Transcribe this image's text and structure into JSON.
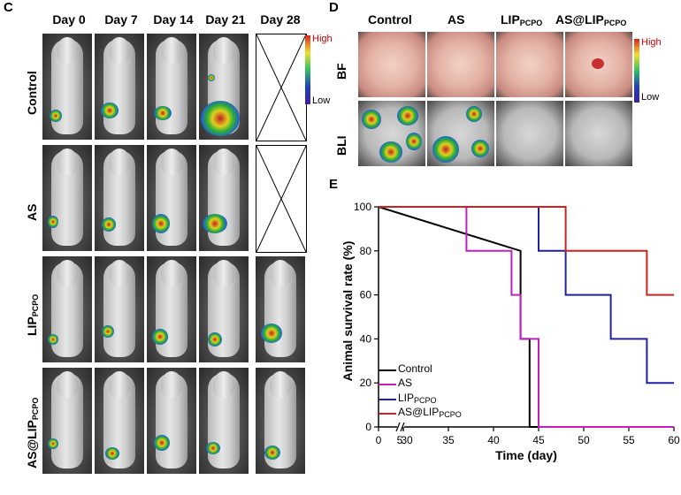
{
  "panel_c": {
    "letter": "C",
    "days": [
      "Day 0",
      "Day 7",
      "Day 14",
      "Day 21",
      "Day 28"
    ],
    "groups": [
      {
        "label": "Control",
        "sub": ""
      },
      {
        "label": "AS",
        "sub": ""
      },
      {
        "label": "LIP",
        "sub": "PCPO"
      },
      {
        "label": "AS@LIP",
        "sub": "PCPO"
      }
    ],
    "colorbar": {
      "high": "High",
      "low": "Low"
    }
  },
  "panel_d": {
    "letter": "D",
    "columns": [
      {
        "label": "Control",
        "sub": ""
      },
      {
        "label": "AS",
        "sub": ""
      },
      {
        "label": "LIP",
        "sub": "PCPO"
      },
      {
        "label": "AS@LIP",
        "sub": "PCPO"
      }
    ],
    "rows": [
      "BF",
      "BLI"
    ],
    "colorbar": {
      "high": "High",
      "low": "Low"
    }
  },
  "panel_e": {
    "letter": "E",
    "chart_data": {
      "type": "line",
      "step": true,
      "xlabel": "Time (day)",
      "ylabel": "Animal survival rate (%)",
      "xticks": [
        "0",
        "5",
        "30",
        "35",
        "40",
        "45",
        "50",
        "55",
        "60"
      ],
      "xlim": [
        0,
        60
      ],
      "broken_axis": "5-30",
      "ylim": [
        0,
        100
      ],
      "yticks": [
        0,
        20,
        40,
        60,
        80,
        100
      ],
      "series": [
        {
          "name": "Control",
          "color": "#000000",
          "x": [
            0,
            43,
            43,
            44,
            44,
            60
          ],
          "y": [
            100,
            80,
            40,
            40,
            0,
            0
          ]
        },
        {
          "name": "AS",
          "color": "#c020c0",
          "x": [
            0,
            37,
            37,
            42,
            42,
            43,
            43,
            44,
            44,
            45,
            45,
            60
          ],
          "y": [
            100,
            100,
            80,
            80,
            60,
            60,
            40,
            40,
            40,
            40,
            0,
            0
          ]
        },
        {
          "name": "LIP",
          "sub": "PCPO",
          "color": "#2020a0",
          "x": [
            0,
            45,
            45,
            48,
            48,
            53,
            53,
            57,
            57,
            60
          ],
          "y": [
            100,
            100,
            80,
            80,
            60,
            60,
            40,
            40,
            20,
            20
          ]
        },
        {
          "name": "AS@LIP",
          "sub": "PCPO",
          "color": "#d02020",
          "x": [
            0,
            48,
            48,
            57,
            57,
            60
          ],
          "y": [
            100,
            100,
            80,
            80,
            60,
            60
          ]
        }
      ]
    }
  }
}
